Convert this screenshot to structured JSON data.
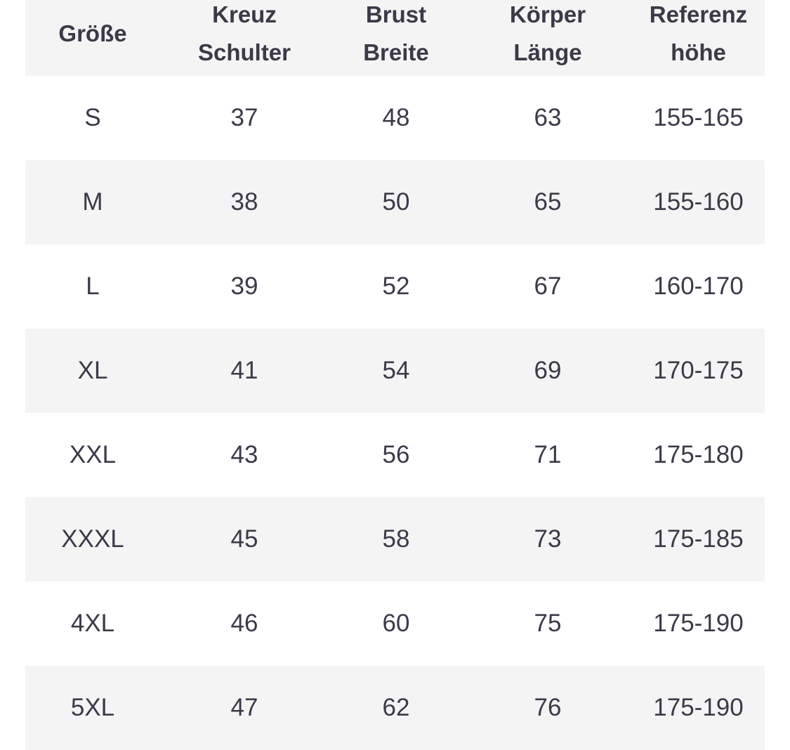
{
  "table": {
    "headers": [
      "Größe",
      "Kreuz\nSchulter",
      "Brust\nBreite",
      "Körper\nLänge",
      "Referenz\nhöhe"
    ],
    "rows": [
      [
        "S",
        "37",
        "48",
        "63",
        "155-165"
      ],
      [
        "M",
        "38",
        "50",
        "65",
        "155-160"
      ],
      [
        "L",
        "39",
        "52",
        "67",
        "160-170"
      ],
      [
        "XL",
        "41",
        "54",
        "69",
        "170-175"
      ],
      [
        "XXL",
        "43",
        "56",
        "71",
        "175-180"
      ],
      [
        "XXXL",
        "45",
        "58",
        "73",
        "175-185"
      ],
      [
        "4XL",
        "46",
        "60",
        "75",
        "175-190"
      ],
      [
        "5XL",
        "47",
        "62",
        "76",
        "175-190"
      ]
    ]
  },
  "colors": {
    "text": "#3a3a48",
    "stripe": "#f4f4f4",
    "background": "#ffffff"
  }
}
